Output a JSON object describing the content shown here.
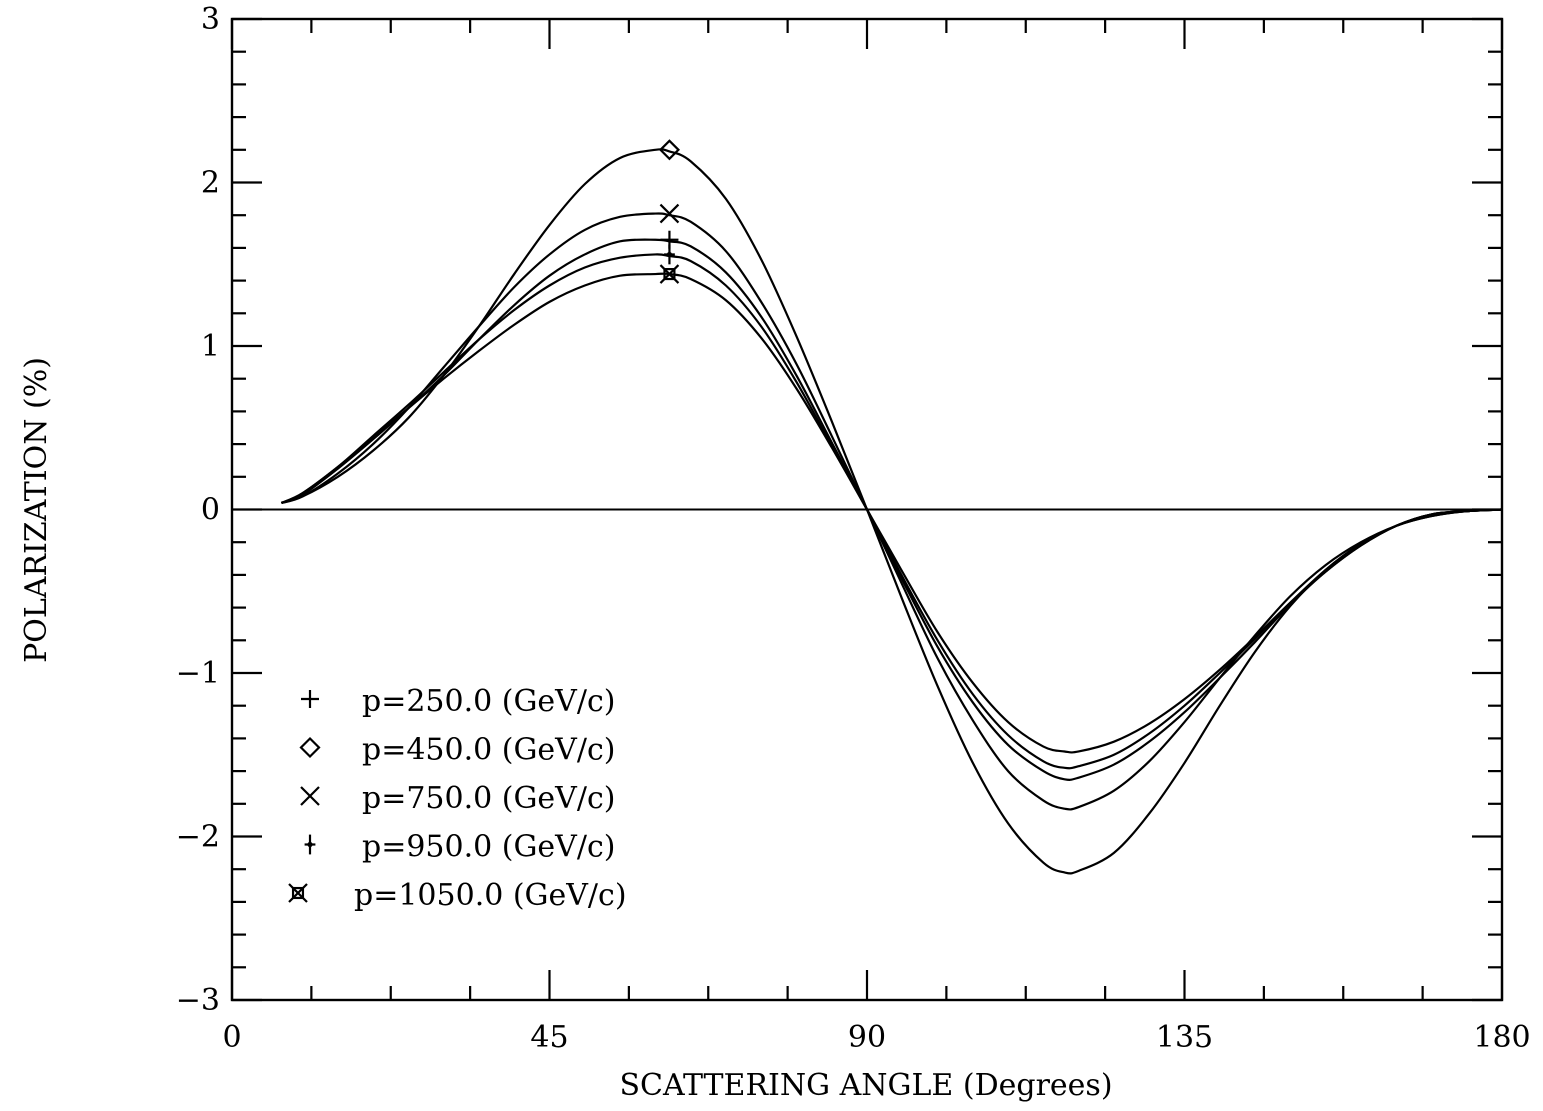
{
  "chart_data": {
    "type": "line",
    "title": "",
    "xlabel": "SCATTERING ANGLE (Degrees)",
    "ylabel": "POLARIZATION (%)",
    "xlim": [
      0,
      180
    ],
    "ylim": [
      -3,
      3
    ],
    "xticks": [
      0,
      45,
      90,
      135,
      180
    ],
    "yticks": [
      -3,
      -2,
      -1,
      0,
      1,
      2,
      3
    ],
    "x_tick_labels": [
      "0",
      "45",
      "90",
      "135",
      "180"
    ],
    "y_tick_labels": [
      "−3",
      "−2",
      "−1",
      "0",
      "1",
      "2",
      "3"
    ],
    "grid": false,
    "legend_position": "bottom-left",
    "x": [
      7,
      10,
      15,
      20,
      25,
      30,
      35,
      40,
      45,
      50,
      55,
      60,
      62,
      65,
      70,
      75,
      80,
      85,
      90,
      95,
      100,
      105,
      110,
      115,
      118,
      120,
      125,
      130,
      135,
      140,
      145,
      150,
      155,
      160,
      165,
      170,
      175,
      180
    ],
    "series": [
      {
        "name": "p=250.0 (GeV/c)",
        "marker": "plus",
        "marker_at": [
          62,
          1.65
        ],
        "values": [
          0.04,
          0.09,
          0.25,
          0.43,
          0.62,
          0.82,
          1.04,
          1.25,
          1.43,
          1.56,
          1.64,
          1.65,
          1.64,
          1.61,
          1.45,
          1.18,
          0.82,
          0.41,
          0.0,
          -0.43,
          -0.84,
          -1.18,
          -1.44,
          -1.6,
          -1.65,
          -1.64,
          -1.56,
          -1.42,
          -1.24,
          -1.03,
          -0.81,
          -0.58,
          -0.38,
          -0.22,
          -0.1,
          -0.03,
          -0.01,
          0.0
        ]
      },
      {
        "name": "p=450.0 (GeV/c)",
        "marker": "diamond",
        "marker_at": [
          62,
          2.2
        ],
        "values": [
          0.04,
          0.08,
          0.2,
          0.36,
          0.56,
          0.82,
          1.12,
          1.44,
          1.74,
          1.99,
          2.15,
          2.2,
          2.19,
          2.13,
          1.9,
          1.53,
          1.06,
          0.54,
          0.0,
          -0.55,
          -1.08,
          -1.55,
          -1.92,
          -2.16,
          -2.22,
          -2.21,
          -2.1,
          -1.86,
          -1.55,
          -1.2,
          -0.87,
          -0.59,
          -0.37,
          -0.21,
          -0.1,
          -0.04,
          -0.01,
          0.0
        ]
      },
      {
        "name": "p=750.0 (GeV/c)",
        "marker": "x",
        "marker_at": [
          62,
          1.81
        ],
        "values": [
          0.04,
          0.08,
          0.22,
          0.4,
          0.62,
          0.87,
          1.12,
          1.36,
          1.56,
          1.71,
          1.79,
          1.81,
          1.8,
          1.76,
          1.58,
          1.27,
          0.89,
          0.45,
          0.0,
          -0.46,
          -0.91,
          -1.29,
          -1.6,
          -1.78,
          -1.83,
          -1.82,
          -1.72,
          -1.54,
          -1.3,
          -1.03,
          -0.77,
          -0.53,
          -0.34,
          -0.2,
          -0.1,
          -0.04,
          -0.01,
          0.0
        ]
      },
      {
        "name": "p=950.0 (GeV/c)",
        "marker": "plus-dot",
        "marker_at": [
          62,
          1.56
        ],
        "values": [
          0.04,
          0.1,
          0.26,
          0.45,
          0.64,
          0.84,
          1.04,
          1.22,
          1.37,
          1.48,
          1.54,
          1.56,
          1.55,
          1.52,
          1.37,
          1.12,
          0.78,
          0.39,
          0.0,
          -0.41,
          -0.8,
          -1.13,
          -1.38,
          -1.54,
          -1.58,
          -1.57,
          -1.5,
          -1.37,
          -1.2,
          -1.0,
          -0.79,
          -0.57,
          -0.37,
          -0.21,
          -0.1,
          -0.03,
          -0.01,
          0.0
        ]
      },
      {
        "name": "p=1050.0 (GeV/c)",
        "marker": "square-x",
        "marker_at": [
          62,
          1.44
        ],
        "values": [
          0.04,
          0.1,
          0.26,
          0.44,
          0.62,
          0.8,
          0.97,
          1.13,
          1.27,
          1.37,
          1.43,
          1.44,
          1.44,
          1.41,
          1.28,
          1.05,
          0.74,
          0.38,
          0.0,
          -0.38,
          -0.75,
          -1.06,
          -1.3,
          -1.45,
          -1.48,
          -1.48,
          -1.42,
          -1.31,
          -1.16,
          -0.98,
          -0.78,
          -0.57,
          -0.38,
          -0.22,
          -0.1,
          -0.03,
          -0.01,
          0.0
        ]
      }
    ]
  }
}
